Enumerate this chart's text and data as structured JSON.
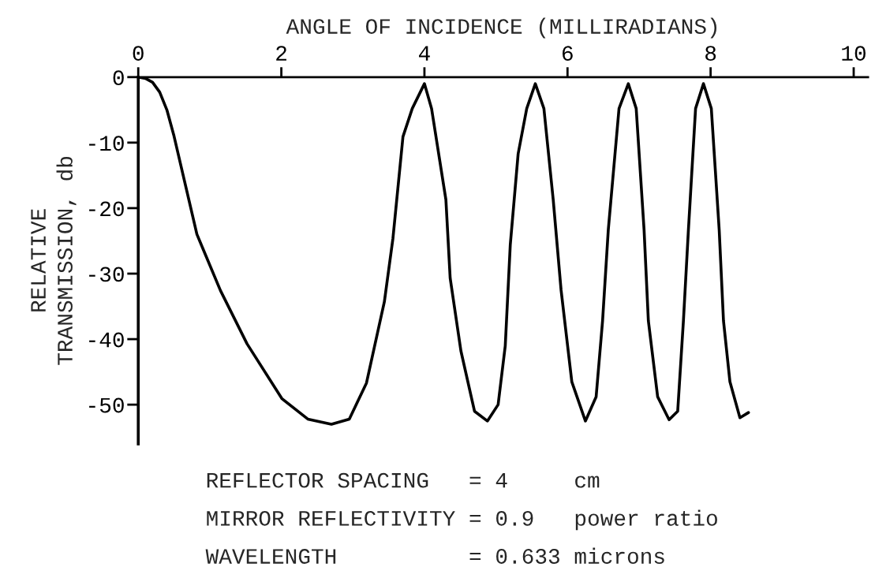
{
  "chart_data": {
    "type": "line",
    "xlabel": "ANGLE OF INCIDENCE (MILLIRADIANS)",
    "ylabel": "RELATIVE\nTRANSMISSION, db",
    "xlim": [
      0,
      10.2
    ],
    "ylim": [
      -56,
      0
    ],
    "xticks": [
      0,
      2,
      4,
      6,
      8,
      10
    ],
    "yticks": [
      0,
      -10,
      -20,
      -30,
      -40,
      -50
    ],
    "grid": false,
    "marker": "none",
    "line_style": "solid",
    "series": [
      {
        "color": "#000000",
        "x": [
          0,
          0.1,
          0.2,
          0.3,
          0.4,
          0.5,
          0.82,
          1.15,
          1.52,
          2.01,
          2.37,
          2.7,
          2.95,
          3.19,
          3.44,
          3.56,
          3.7,
          3.83,
          4.0,
          4.1,
          4.3,
          4.36,
          4.51,
          4.7,
          4.88,
          5.03,
          5.13,
          5.2,
          5.31,
          5.43,
          5.55,
          5.67,
          5.8,
          5.91,
          6.06,
          6.25,
          6.4,
          6.49,
          6.57,
          6.72,
          6.85,
          6.96,
          7.07,
          7.13,
          7.26,
          7.42,
          7.54,
          7.62,
          7.69,
          7.79,
          7.9,
          8.01,
          8.12,
          8.18,
          8.27,
          8.41,
          8.53
        ],
        "values": [
          0,
          -0.2,
          -0.8,
          -2.3,
          -5,
          -9,
          -24,
          -32.6,
          -40.7,
          -49.1,
          -52.2,
          -53,
          -52.2,
          -46.7,
          -34.3,
          -24.6,
          -9.1,
          -4.8,
          -1,
          -4.8,
          -18.7,
          -30.7,
          -41.8,
          -51,
          -52.5,
          -50,
          -41,
          -25.6,
          -11.7,
          -4.8,
          -1,
          -4.8,
          -18.7,
          -32.5,
          -46.5,
          -52.5,
          -48.8,
          -37.2,
          -23.3,
          -4.8,
          -1,
          -4.8,
          -23.3,
          -37.2,
          -48.8,
          -52.3,
          -51,
          -37.2,
          -23.3,
          -4.8,
          -1,
          -4.8,
          -23.3,
          -37.2,
          -46.5,
          -52,
          -51.2
        ]
      }
    ],
    "annotations": [
      "REFLECTOR SPACING   = 4     cm",
      "MIRROR REFLECTIVITY = 0.9   power ratio",
      "WAVELENGTH          = 0.633 microns"
    ]
  }
}
